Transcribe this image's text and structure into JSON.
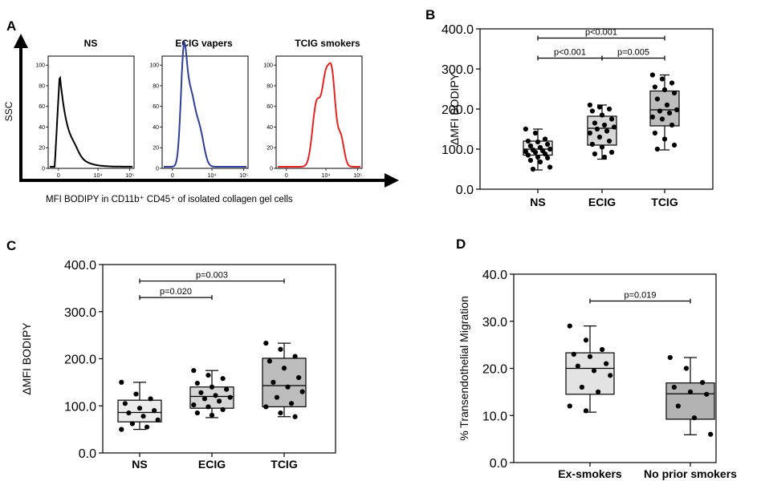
{
  "panel_letters": [
    "A",
    "B",
    "C",
    "D"
  ],
  "panel_a": {
    "y_axis_label": "SSC",
    "x_axis_label": "MFI BODIPY in CD11b⁺ CD45⁺ of isolated collagen gel cells",
    "histograms": [
      {
        "title": "NS",
        "color": "#000000",
        "ytick_labels": [
          "0",
          "20",
          "40",
          "60",
          "80",
          "100"
        ],
        "xtick_labels": [
          "0",
          "10⁴",
          "10⁵"
        ]
      },
      {
        "title": "ECIG vapers",
        "color": "#2e3f99",
        "ytick_labels": [
          "0",
          "20",
          "40",
          "60",
          "80",
          "100"
        ],
        "xtick_labels": [
          "0",
          "10⁴",
          "10⁵"
        ]
      },
      {
        "title": "TCIG smokers",
        "color": "#e52421",
        "ytick_labels": [
          "0",
          "20",
          "40",
          "60",
          "80",
          "100"
        ],
        "xtick_labels": [
          "0",
          "10⁴",
          "10⁵"
        ]
      }
    ]
  },
  "chart_data": [
    {
      "panel": "B",
      "type": "box",
      "ylabel": "ΔMFI BODIPY",
      "ylim": [
        0,
        400
      ],
      "ytick_labels": [
        "0.0",
        "100.0",
        "200.0",
        "300.0",
        "400.0"
      ],
      "categories": [
        "NS",
        "ECIG",
        "TCIG"
      ],
      "fills": [
        "#ececec",
        "#d6d6d6",
        "#bdbdbd"
      ],
      "boxes": [
        {
          "min": 48,
          "q1": 85,
          "median": 100,
          "q3": 120,
          "max": 150
        },
        {
          "min": 75,
          "q1": 110,
          "median": 152,
          "q3": 182,
          "max": 210
        },
        {
          "min": 98,
          "q1": 158,
          "median": 198,
          "q3": 245,
          "max": 285
        }
      ],
      "points": [
        [
          150,
          140,
          125,
          120,
          118,
          112,
          108,
          104,
          100,
          98,
          96,
          94,
          92,
          88,
          85,
          80,
          78,
          72,
          68,
          55,
          50
        ],
        [
          210,
          205,
          200,
          195,
          185,
          175,
          165,
          160,
          155,
          150,
          145,
          140,
          130,
          120,
          112,
          105,
          92,
          88,
          80
        ],
        [
          285,
          275,
          265,
          255,
          248,
          240,
          225,
          210,
          198,
          195,
          190,
          180,
          175,
          160,
          140,
          125,
          110,
          100
        ]
      ],
      "comparisons": [
        {
          "from": 0,
          "to": 2,
          "label": "p<0.001",
          "y": 377
        },
        {
          "from": 0,
          "to": 1,
          "label": "p<0.001",
          "y": 327
        },
        {
          "from": 1,
          "to": 2,
          "label": "p=0.005",
          "y": 327
        }
      ]
    },
    {
      "panel": "C",
      "type": "box",
      "ylabel": "ΔMFI BODIPY",
      "ylim": [
        0,
        400
      ],
      "ytick_labels": [
        "0.0",
        "100.0",
        "200.0",
        "300.0",
        "400.0"
      ],
      "categories": [
        "NS",
        "ECIG",
        "TCIG"
      ],
      "fills": [
        "#ececec",
        "#d6d6d6",
        "#bdbdbd"
      ],
      "boxes": [
        {
          "min": 50,
          "q1": 66,
          "median": 86,
          "q3": 112,
          "max": 150
        },
        {
          "min": 75,
          "q1": 95,
          "median": 120,
          "q3": 140,
          "max": 175
        },
        {
          "min": 77,
          "q1": 98,
          "median": 143,
          "q3": 201,
          "max": 233
        }
      ],
      "points": [
        [
          150,
          125,
          115,
          105,
          95,
          90,
          85,
          78,
          70,
          62,
          55,
          50
        ],
        [
          175,
          165,
          158,
          148,
          140,
          135,
          128,
          122,
          118,
          115,
          110,
          102,
          98,
          92,
          85,
          80
        ],
        [
          233,
          220,
          205,
          195,
          180,
          160,
          150,
          140,
          130,
          118,
          105,
          98,
          85,
          77
        ]
      ],
      "comparisons": [
        {
          "from": 0,
          "to": 2,
          "label": "p=0.003",
          "y": 365
        },
        {
          "from": 0,
          "to": 1,
          "label": "p=0.020",
          "y": 330
        }
      ]
    },
    {
      "panel": "D",
      "type": "box",
      "ylabel": "% Transendothelial Migration",
      "ylim": [
        0,
        40
      ],
      "ytick_labels": [
        "0.0",
        "10.0",
        "20.0",
        "30.0",
        "40.0"
      ],
      "categories": [
        "Ex-smokers",
        "No prior smokers"
      ],
      "fills": [
        "#e3e3e3",
        "#b3b3b3"
      ],
      "boxes": [
        {
          "min": 10.7,
          "q1": 14.5,
          "median": 20,
          "q3": 23.3,
          "max": 29
        },
        {
          "min": 5.9,
          "q1": 9.2,
          "median": 14.6,
          "q3": 16.9,
          "max": 22.3
        }
      ],
      "points": [
        [
          29,
          26,
          24,
          23,
          22.5,
          21,
          20.5,
          19.5,
          18.5,
          16,
          15,
          12,
          11
        ],
        [
          22.3,
          20,
          17,
          16,
          15,
          14.5,
          12,
          9.5,
          6
        ]
      ],
      "comparisons": [
        {
          "from": 0,
          "to": 1,
          "label": "p=0.019",
          "y": 34.3
        }
      ]
    }
  ]
}
